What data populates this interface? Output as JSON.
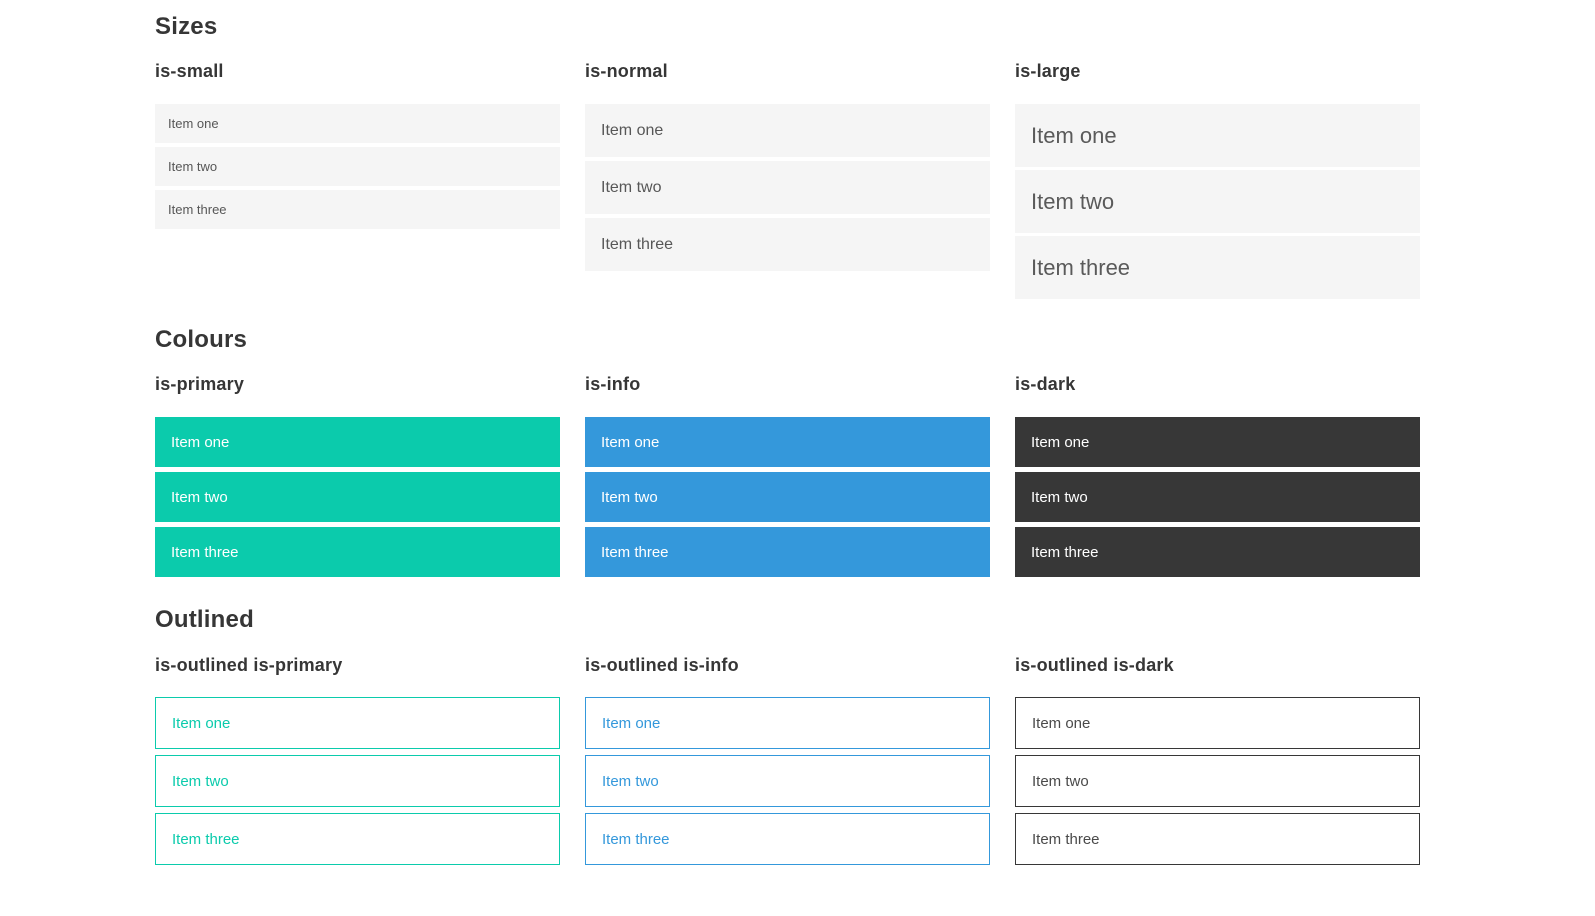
{
  "colors": {
    "primary": "#0bcbac",
    "info": "#3498db",
    "dark": "#373737",
    "item_bg": "#f5f5f5"
  },
  "sections": [
    {
      "title": "Sizes",
      "groups": [
        {
          "label": "is-small",
          "items": [
            "Item one",
            "Item two",
            "Item three"
          ]
        },
        {
          "label": "is-normal",
          "items": [
            "Item one",
            "Item two",
            "Item three"
          ]
        },
        {
          "label": "is-large",
          "items": [
            "Item one",
            "Item two",
            "Item three"
          ]
        }
      ]
    },
    {
      "title": "Colours",
      "groups": [
        {
          "label": "is-primary",
          "items": [
            "Item one",
            "Item two",
            "Item three"
          ]
        },
        {
          "label": "is-info",
          "items": [
            "Item one",
            "Item two",
            "Item three"
          ]
        },
        {
          "label": "is-dark",
          "items": [
            "Item one",
            "Item two",
            "Item three"
          ]
        }
      ]
    },
    {
      "title": "Outlined",
      "groups": [
        {
          "label": "is-outlined is-primary",
          "items": [
            "Item one",
            "Item two",
            "Item three"
          ]
        },
        {
          "label": "is-outlined is-info",
          "items": [
            "Item one",
            "Item two",
            "Item three"
          ]
        },
        {
          "label": "is-outlined is-dark",
          "items": [
            "Item one",
            "Item two",
            "Item three"
          ]
        }
      ]
    }
  ]
}
